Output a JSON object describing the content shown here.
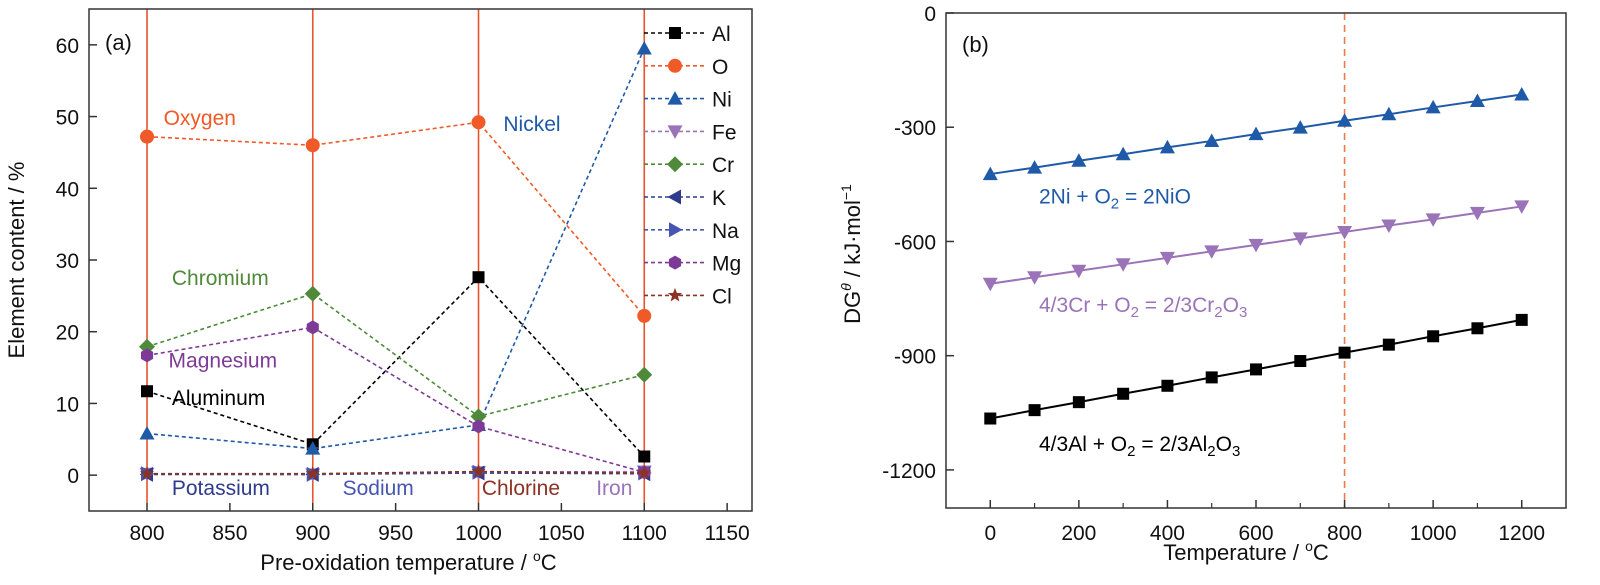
{
  "chart_data": [
    {
      "id": "a",
      "type": "line",
      "panel_label": "(a)",
      "xlabel": "Pre-oxidation temperature / °C",
      "ylabel": "Element content / %",
      "xlim": [
        765,
        1165
      ],
      "ylim": [
        -5,
        65
      ],
      "xticks": [
        800,
        850,
        900,
        950,
        1000,
        1050,
        1100,
        1150
      ],
      "yticks": [
        0,
        10,
        20,
        30,
        40,
        50,
        60
      ],
      "grid": false,
      "legend_position": "top-right",
      "reference_lines": {
        "axis": "x",
        "values": [
          800,
          900,
          1000,
          1100
        ],
        "color": "#e8532b",
        "style": "solid"
      },
      "x": [
        800,
        900,
        1000,
        1100
      ],
      "series": [
        {
          "name": "Al",
          "marker": "square",
          "color": "#000000",
          "values": [
            11.7,
            4.3,
            27.6,
            2.6
          ]
        },
        {
          "name": "O",
          "marker": "circle",
          "color": "#ef5a28",
          "values": [
            47.2,
            46.0,
            49.2,
            22.2
          ]
        },
        {
          "name": "Ni",
          "marker": "triangle-up",
          "color": "#1f5aa8",
          "values": [
            5.8,
            3.7,
            7.0,
            59.5
          ]
        },
        {
          "name": "Fe",
          "marker": "triangle-down",
          "color": "#9b73b8",
          "values": [
            0.2,
            0.1,
            0.4,
            0.5
          ]
        },
        {
          "name": "Cr",
          "marker": "diamond",
          "color": "#4f8a3a",
          "values": [
            17.9,
            25.3,
            8.2,
            14.0
          ]
        },
        {
          "name": "K",
          "marker": "triangle-left",
          "color": "#2e3b8c",
          "values": [
            0.1,
            0.1,
            0.3,
            0.2
          ]
        },
        {
          "name": "Na",
          "marker": "triangle-right",
          "color": "#4656b0",
          "values": [
            0.2,
            0.1,
            0.4,
            0.3
          ]
        },
        {
          "name": "Mg",
          "marker": "hexagon",
          "color": "#7d3b97",
          "values": [
            16.7,
            20.6,
            6.8,
            0.4
          ]
        },
        {
          "name": "Cl",
          "marker": "star",
          "color": "#8b3224",
          "values": [
            0.2,
            0.2,
            0.5,
            0.3
          ]
        }
      ],
      "annotations": [
        {
          "text": "Oxygen",
          "color": "#ef5a28",
          "x": 810,
          "y": 48.8
        },
        {
          "text": "Nickel",
          "color": "#1f5aa8",
          "x": 1015,
          "y": 48.0
        },
        {
          "text": "Chromium",
          "color": "#4f8a3a",
          "x": 815,
          "y": 26.5
        },
        {
          "text": "Magnesium",
          "color": "#7d3b97",
          "x": 813,
          "y": 15.0
        },
        {
          "text": "Aluminum",
          "color": "#000000",
          "x": 815,
          "y": 9.8
        },
        {
          "text": "Potassium",
          "color": "#2e3b8c",
          "x": 815,
          "y": -2.8
        },
        {
          "text": "Sodium",
          "color": "#4656b0",
          "x": 918,
          "y": -2.8
        },
        {
          "text": "Chlorine",
          "color": "#8b3224",
          "x": 1002,
          "y": -2.8
        },
        {
          "text": "Iron",
          "color": "#9b73b8",
          "x": 1071,
          "y": -2.8
        }
      ]
    },
    {
      "id": "b",
      "type": "line",
      "panel_label": "(b)",
      "xlabel": "Temperature / °C",
      "ylabel": "DGθ / kJ·mol⁻¹",
      "xlim": [
        -100,
        1300
      ],
      "ylim": [
        -1300,
        0
      ],
      "xticks": [
        0,
        200,
        400,
        600,
        800,
        1000,
        1200
      ],
      "xminor": [
        100,
        300,
        500,
        700,
        900,
        1100
      ],
      "yticks": [
        0,
        -300,
        -600,
        -900,
        -1200
      ],
      "grid": false,
      "reference_lines": {
        "axis": "x",
        "values": [
          800
        ],
        "color": "#e8532b",
        "style": "dashed"
      },
      "x": [
        0,
        100,
        200,
        300,
        400,
        500,
        600,
        700,
        800,
        900,
        1000,
        1100,
        1200
      ],
      "series": [
        {
          "name": "2Ni + O2 = 2NiO",
          "marker": "triangle-up",
          "color": "#1f5aa8",
          "values": [
            -423,
            -406,
            -388,
            -371,
            -353,
            -336,
            -318,
            -301,
            -283,
            -266,
            -248,
            -231,
            -214
          ]
        },
        {
          "name": "4/3Cr + O2 = 2/3Cr2O3",
          "marker": "triangle-down",
          "color": "#9b73b8",
          "values": [
            -711,
            -694,
            -677,
            -660,
            -643,
            -626,
            -609,
            -592,
            -575,
            -558,
            -542,
            -525,
            -508
          ]
        },
        {
          "name": "4/3Al + O2 = 2/3Al2O3",
          "marker": "square",
          "color": "#000000",
          "values": [
            -1065,
            -1043,
            -1022,
            -1000,
            -979,
            -957,
            -936,
            -914,
            -892,
            -871,
            -849,
            -828,
            -806
          ]
        }
      ],
      "annotations": [
        {
          "parts": [
            [
              "2Ni + O",
              ""
            ],
            [
              "2",
              "sub"
            ],
            [
              " = 2NiO",
              ""
            ]
          ],
          "color": "#1f5aa8",
          "x": 110,
          "y": -500
        },
        {
          "parts": [
            [
              "4/3Cr + O",
              ""
            ],
            [
              "2",
              "sub"
            ],
            [
              " = 2/3Cr",
              ""
            ],
            [
              "2",
              "sub"
            ],
            [
              "O",
              ""
            ],
            [
              "3",
              "sub"
            ]
          ],
          "color": "#9b73b8",
          "x": 110,
          "y": -785
        },
        {
          "parts": [
            [
              "4/3Al + O",
              ""
            ],
            [
              "2",
              "sub"
            ],
            [
              " = 2/3Al",
              ""
            ],
            [
              "2",
              "sub"
            ],
            [
              "O",
              ""
            ],
            [
              "3",
              "sub"
            ]
          ],
          "color": "#000000",
          "x": 110,
          "y": -1150
        }
      ]
    }
  ]
}
